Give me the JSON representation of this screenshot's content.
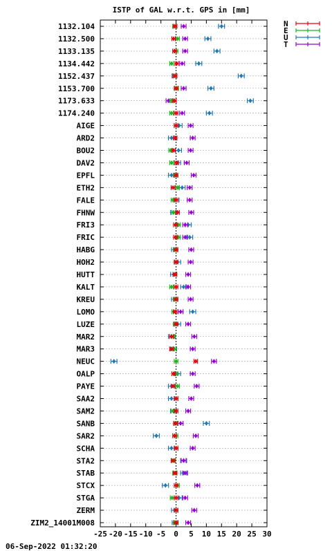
{
  "chart_data": {
    "type": "scatter",
    "title": "ISTP of GAL w.r.t. GPS in [mm]",
    "footer": "06-Sep-2022 01:32:20",
    "xlim": [
      -25,
      30
    ],
    "xticks": [
      -25,
      -20,
      -15,
      -10,
      -5,
      0,
      5,
      10,
      15,
      20,
      25,
      30
    ],
    "xtick_labels": [
      "-25",
      "-20",
      "-15",
      "-10",
      "-5",
      "0",
      "5",
      "10",
      "15",
      "20",
      "25",
      "30"
    ],
    "legend_position": "top-right",
    "grid": true,
    "series": [
      {
        "name": "N",
        "color": "#e8000a",
        "errorbar": 0.6
      },
      {
        "name": "E",
        "color": "#1fb41f",
        "errorbar": 0.6
      },
      {
        "name": "U",
        "color": "#1f77b4",
        "errorbar": 1.0
      },
      {
        "name": "T",
        "color": "#9400d3",
        "errorbar": 0.8
      }
    ],
    "stations": [
      "1132.104",
      "1132.500",
      "1133.135",
      "1134.442",
      "1152.437",
      "1153.700",
      "1173.633",
      "1174.240",
      "AIGE",
      "ARD2",
      "BOU2",
      "DAV2",
      "EPFL",
      "ETH2",
      "FALE",
      "FHNW",
      "FRI3",
      "FRIC",
      "HABG",
      "HOH2",
      "HUTT",
      "KALT",
      "KREU",
      "LOMO",
      "LUZE",
      "MAR2",
      "MAR3",
      "NEUC",
      "OALP",
      "PAYE",
      "SAA2",
      "SAM2",
      "SANB",
      "SAR2",
      "SCHA",
      "STA2",
      "STAB",
      "STCX",
      "STGA",
      "ZERM",
      "ZIM2_14001M008"
    ],
    "N": [
      -0.3,
      -0.8,
      -0.5,
      0.2,
      -0.3,
      0.0,
      -0.5,
      0.0,
      0.0,
      -0.3,
      -0.8,
      0.2,
      0.0,
      -1.0,
      0.0,
      0.5,
      -0.2,
      -0.2,
      0.0,
      0.0,
      -0.4,
      0.0,
      0.0,
      -0.3,
      0.0,
      -1.5,
      -1.5,
      6.5,
      -0.8,
      -1.0,
      0.0,
      0.0,
      -0.2,
      -0.5,
      0.0,
      -1.0,
      -0.3,
      0.0,
      0.0,
      0.0,
      0.0
    ],
    "E": [
      -0.5,
      0.5,
      0.0,
      -1.5,
      -0.5,
      0.2,
      -1.5,
      -1.5,
      0.0,
      -0.3,
      -1.8,
      -1.5,
      -0.3,
      0.5,
      -1.0,
      -0.8,
      0.8,
      0.8,
      -0.3,
      0.0,
      -0.3,
      -1.5,
      -0.3,
      -0.8,
      -0.3,
      -0.8,
      -0.5,
      0.0,
      0.0,
      0.5,
      0.0,
      -1.0,
      0.0,
      0.0,
      0.0,
      -0.8,
      -0.5,
      0.5,
      -1.3,
      0.0,
      -0.3
    ],
    "U": [
      15.0,
      10.5,
      13.5,
      7.5,
      21.5,
      11.5,
      24.5,
      11.0,
      1.0,
      -1.5,
      0.8,
      0.5,
      -1.5,
      2.0,
      0.0,
      -0.8,
      4.0,
      4.5,
      -0.5,
      0.5,
      -0.8,
      2.5,
      -0.5,
      5.5,
      0.5,
      -1.5,
      -0.8,
      -20.5,
      0.5,
      -1.5,
      -1.5,
      -0.8,
      10.0,
      -6.5,
      -1.5,
      2.5,
      2.5,
      -3.5,
      1.0,
      -0.5,
      -0.3
    ],
    "T": [
      2.5,
      3.0,
      3.0,
      2.0,
      -0.5,
      2.5,
      -2.5,
      2.0,
      4.8,
      5.5,
      4.8,
      3.5,
      5.8,
      4.5,
      4.5,
      5.0,
      3.0,
      3.0,
      5.0,
      4.8,
      4.0,
      4.0,
      4.8,
      1.5,
      4.0,
      6.0,
      5.5,
      12.5,
      5.5,
      6.8,
      5.0,
      4.0,
      1.5,
      6.5,
      5.5,
      2.5,
      3.0,
      7.0,
      3.0,
      6.0,
      4.0
    ]
  }
}
